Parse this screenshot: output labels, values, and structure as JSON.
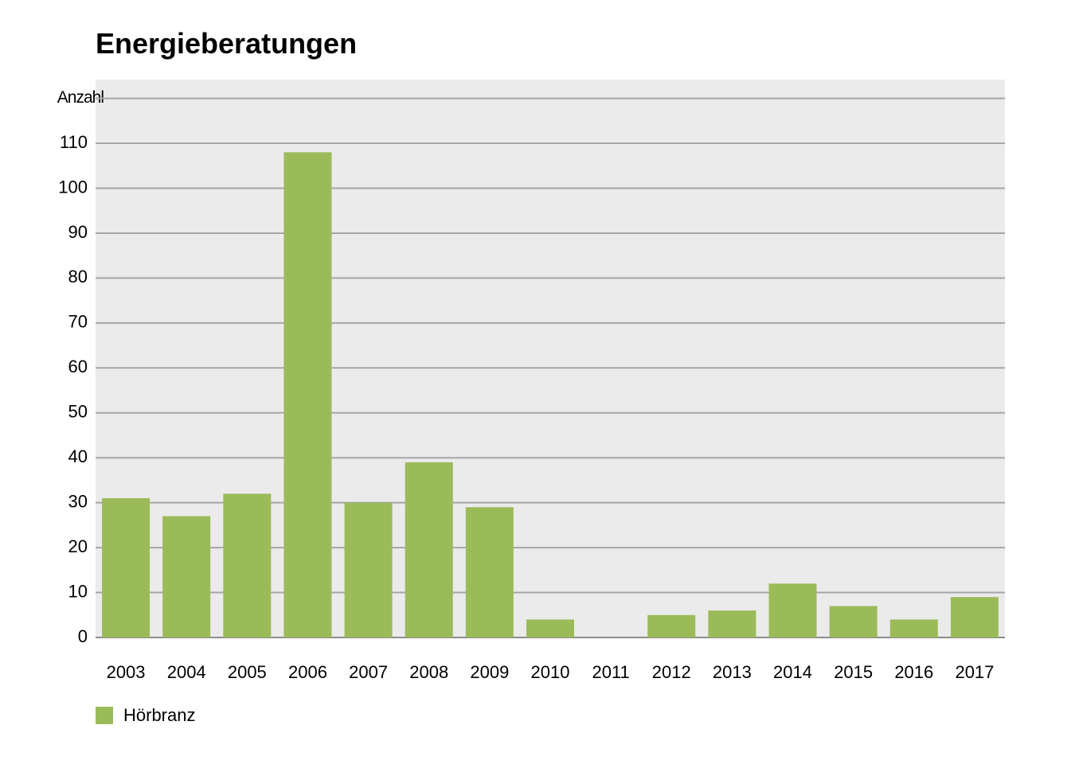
{
  "chart_data": {
    "type": "bar",
    "title": "Energieberatungen",
    "categories": [
      "2003",
      "2004",
      "2005",
      "2006",
      "2007",
      "2008",
      "2009",
      "2010",
      "2011",
      "2012",
      "2013",
      "2014",
      "2015",
      "2016",
      "2017"
    ],
    "series": [
      {
        "name": "Hörbranz",
        "color": "#9bbb59",
        "values": [
          31,
          27,
          32,
          108,
          30,
          39,
          29,
          4,
          0,
          5,
          6,
          12,
          7,
          4,
          9
        ]
      }
    ],
    "ylim": [
      0,
      120
    ],
    "yticks": [
      0,
      10,
      20,
      30,
      40,
      50,
      60,
      70,
      80,
      90,
      100,
      110,
      {
        "value": 120,
        "label": "Anzahl"
      }
    ],
    "grid": true,
    "legend": "bottom-left"
  }
}
